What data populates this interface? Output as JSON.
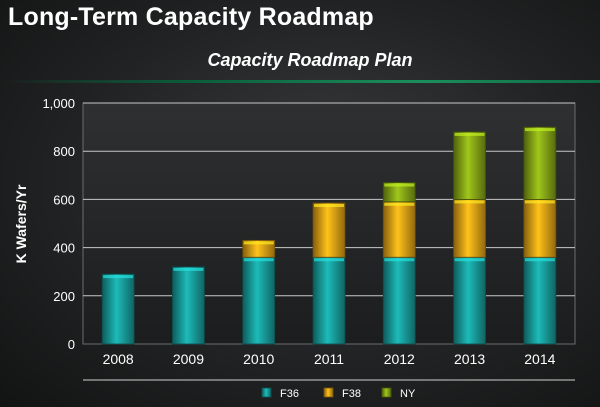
{
  "slide": {
    "title": "Long-Term Capacity Roadmap"
  },
  "colors": {
    "F36": "#1aa7a5",
    "F38": "#f3ad17",
    "NY": "#8fb118",
    "divider": "#1a8f5c"
  },
  "chart_data": {
    "type": "bar",
    "stacked": true,
    "title": "Capacity Roadmap Plan",
    "xlabel": "",
    "ylabel": "K Wafers/Yr",
    "ylim": [
      0,
      1000
    ],
    "yticks": [
      "0",
      "200",
      "400",
      "600",
      "800",
      "1,000"
    ],
    "ytick_values": [
      0,
      200,
      400,
      600,
      800,
      1000
    ],
    "grid": true,
    "legend_position": "bottom-center",
    "categories": [
      "2008",
      "2009",
      "2010",
      "2011",
      "2012",
      "2013",
      "2014"
    ],
    "series": [
      {
        "name": "F36",
        "color": "#1aa7a5",
        "values": [
          290,
          320,
          360,
          360,
          360,
          360,
          360
        ]
      },
      {
        "name": "F38",
        "color": "#f3ad17",
        "values": [
          0,
          0,
          70,
          225,
          230,
          240,
          240
        ]
      },
      {
        "name": "NY",
        "color": "#8fb118",
        "values": [
          0,
          0,
          0,
          0,
          80,
          280,
          300
        ]
      }
    ]
  }
}
